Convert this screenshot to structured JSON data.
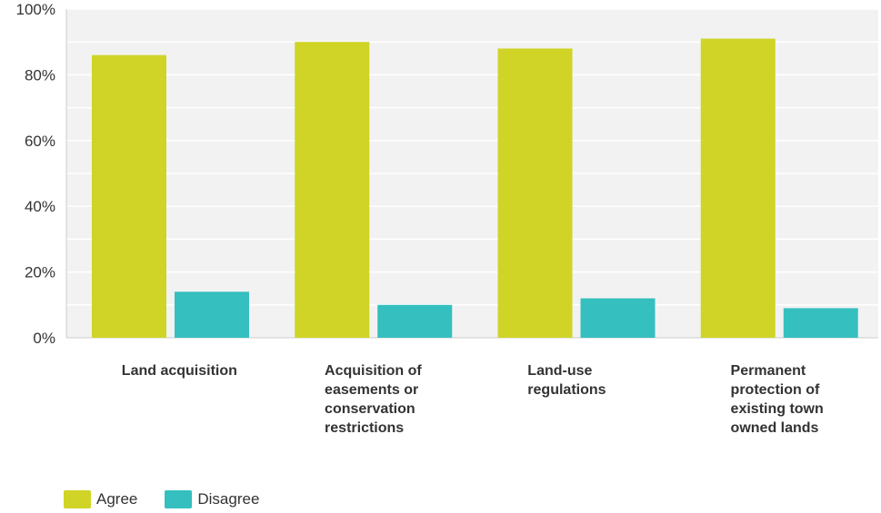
{
  "colors": {
    "agree": "#cfd426",
    "disagree": "#35bfbf",
    "plot_bg": "#f2f2f2",
    "grid": "#ffffff"
  },
  "legend": {
    "agree": "Agree",
    "disagree": "Disagree"
  },
  "chart_data": {
    "type": "bar",
    "categories": [
      [
        "Land acquisition"
      ],
      [
        "Acquisition of",
        "easements or",
        "conservation",
        "restrictions"
      ],
      [
        "Land-use",
        "regulations"
      ],
      [
        "Permanent",
        "protection of",
        "existing town",
        "owned lands"
      ]
    ],
    "series": [
      {
        "name": "Agree",
        "values": [
          86,
          90,
          88,
          91
        ]
      },
      {
        "name": "Disagree",
        "values": [
          14,
          10,
          12,
          9
        ]
      }
    ],
    "yticks": [
      "0%",
      "20%",
      "40%",
      "60%",
      "80%",
      "100%"
    ],
    "ylim": [
      0,
      100
    ],
    "grid": true,
    "legend_position": "bottom-left"
  }
}
